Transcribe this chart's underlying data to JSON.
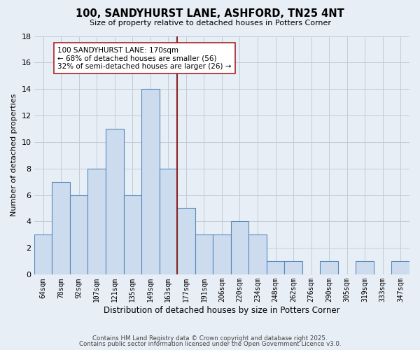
{
  "title": "100, SANDYHURST LANE, ASHFORD, TN25 4NT",
  "subtitle": "Size of property relative to detached houses in Potters Corner",
  "xlabel": "Distribution of detached houses by size in Potters Corner",
  "ylabel": "Number of detached properties",
  "bin_labels": [
    "64sqm",
    "78sqm",
    "92sqm",
    "107sqm",
    "121sqm",
    "135sqm",
    "149sqm",
    "163sqm",
    "177sqm",
    "191sqm",
    "206sqm",
    "220sqm",
    "234sqm",
    "248sqm",
    "262sqm",
    "276sqm",
    "290sqm",
    "305sqm",
    "319sqm",
    "333sqm",
    "347sqm"
  ],
  "bar_values": [
    3,
    7,
    6,
    8,
    11,
    6,
    14,
    8,
    5,
    3,
    3,
    4,
    3,
    1,
    1,
    0,
    1,
    0,
    1,
    0,
    1
  ],
  "bar_color": "#ccdcee",
  "bar_edge_color": "#5588bb",
  "grid_color": "#c0ccd8",
  "background_color": "#e8eef6",
  "vline_x": 7.5,
  "vline_color": "#882222",
  "annotation_text": "100 SANDYHURST LANE: 170sqm\n← 68% of detached houses are smaller (56)\n32% of semi-detached houses are larger (26) →",
  "annotation_box_color": "#ffffff",
  "annotation_box_edge": "#aa2222",
  "ylim": [
    0,
    18
  ],
  "yticks": [
    0,
    2,
    4,
    6,
    8,
    10,
    12,
    14,
    16,
    18
  ],
  "footer1": "Contains HM Land Registry data © Crown copyright and database right 2025.",
  "footer2": "Contains public sector information licensed under the Open Government Licence v3.0."
}
